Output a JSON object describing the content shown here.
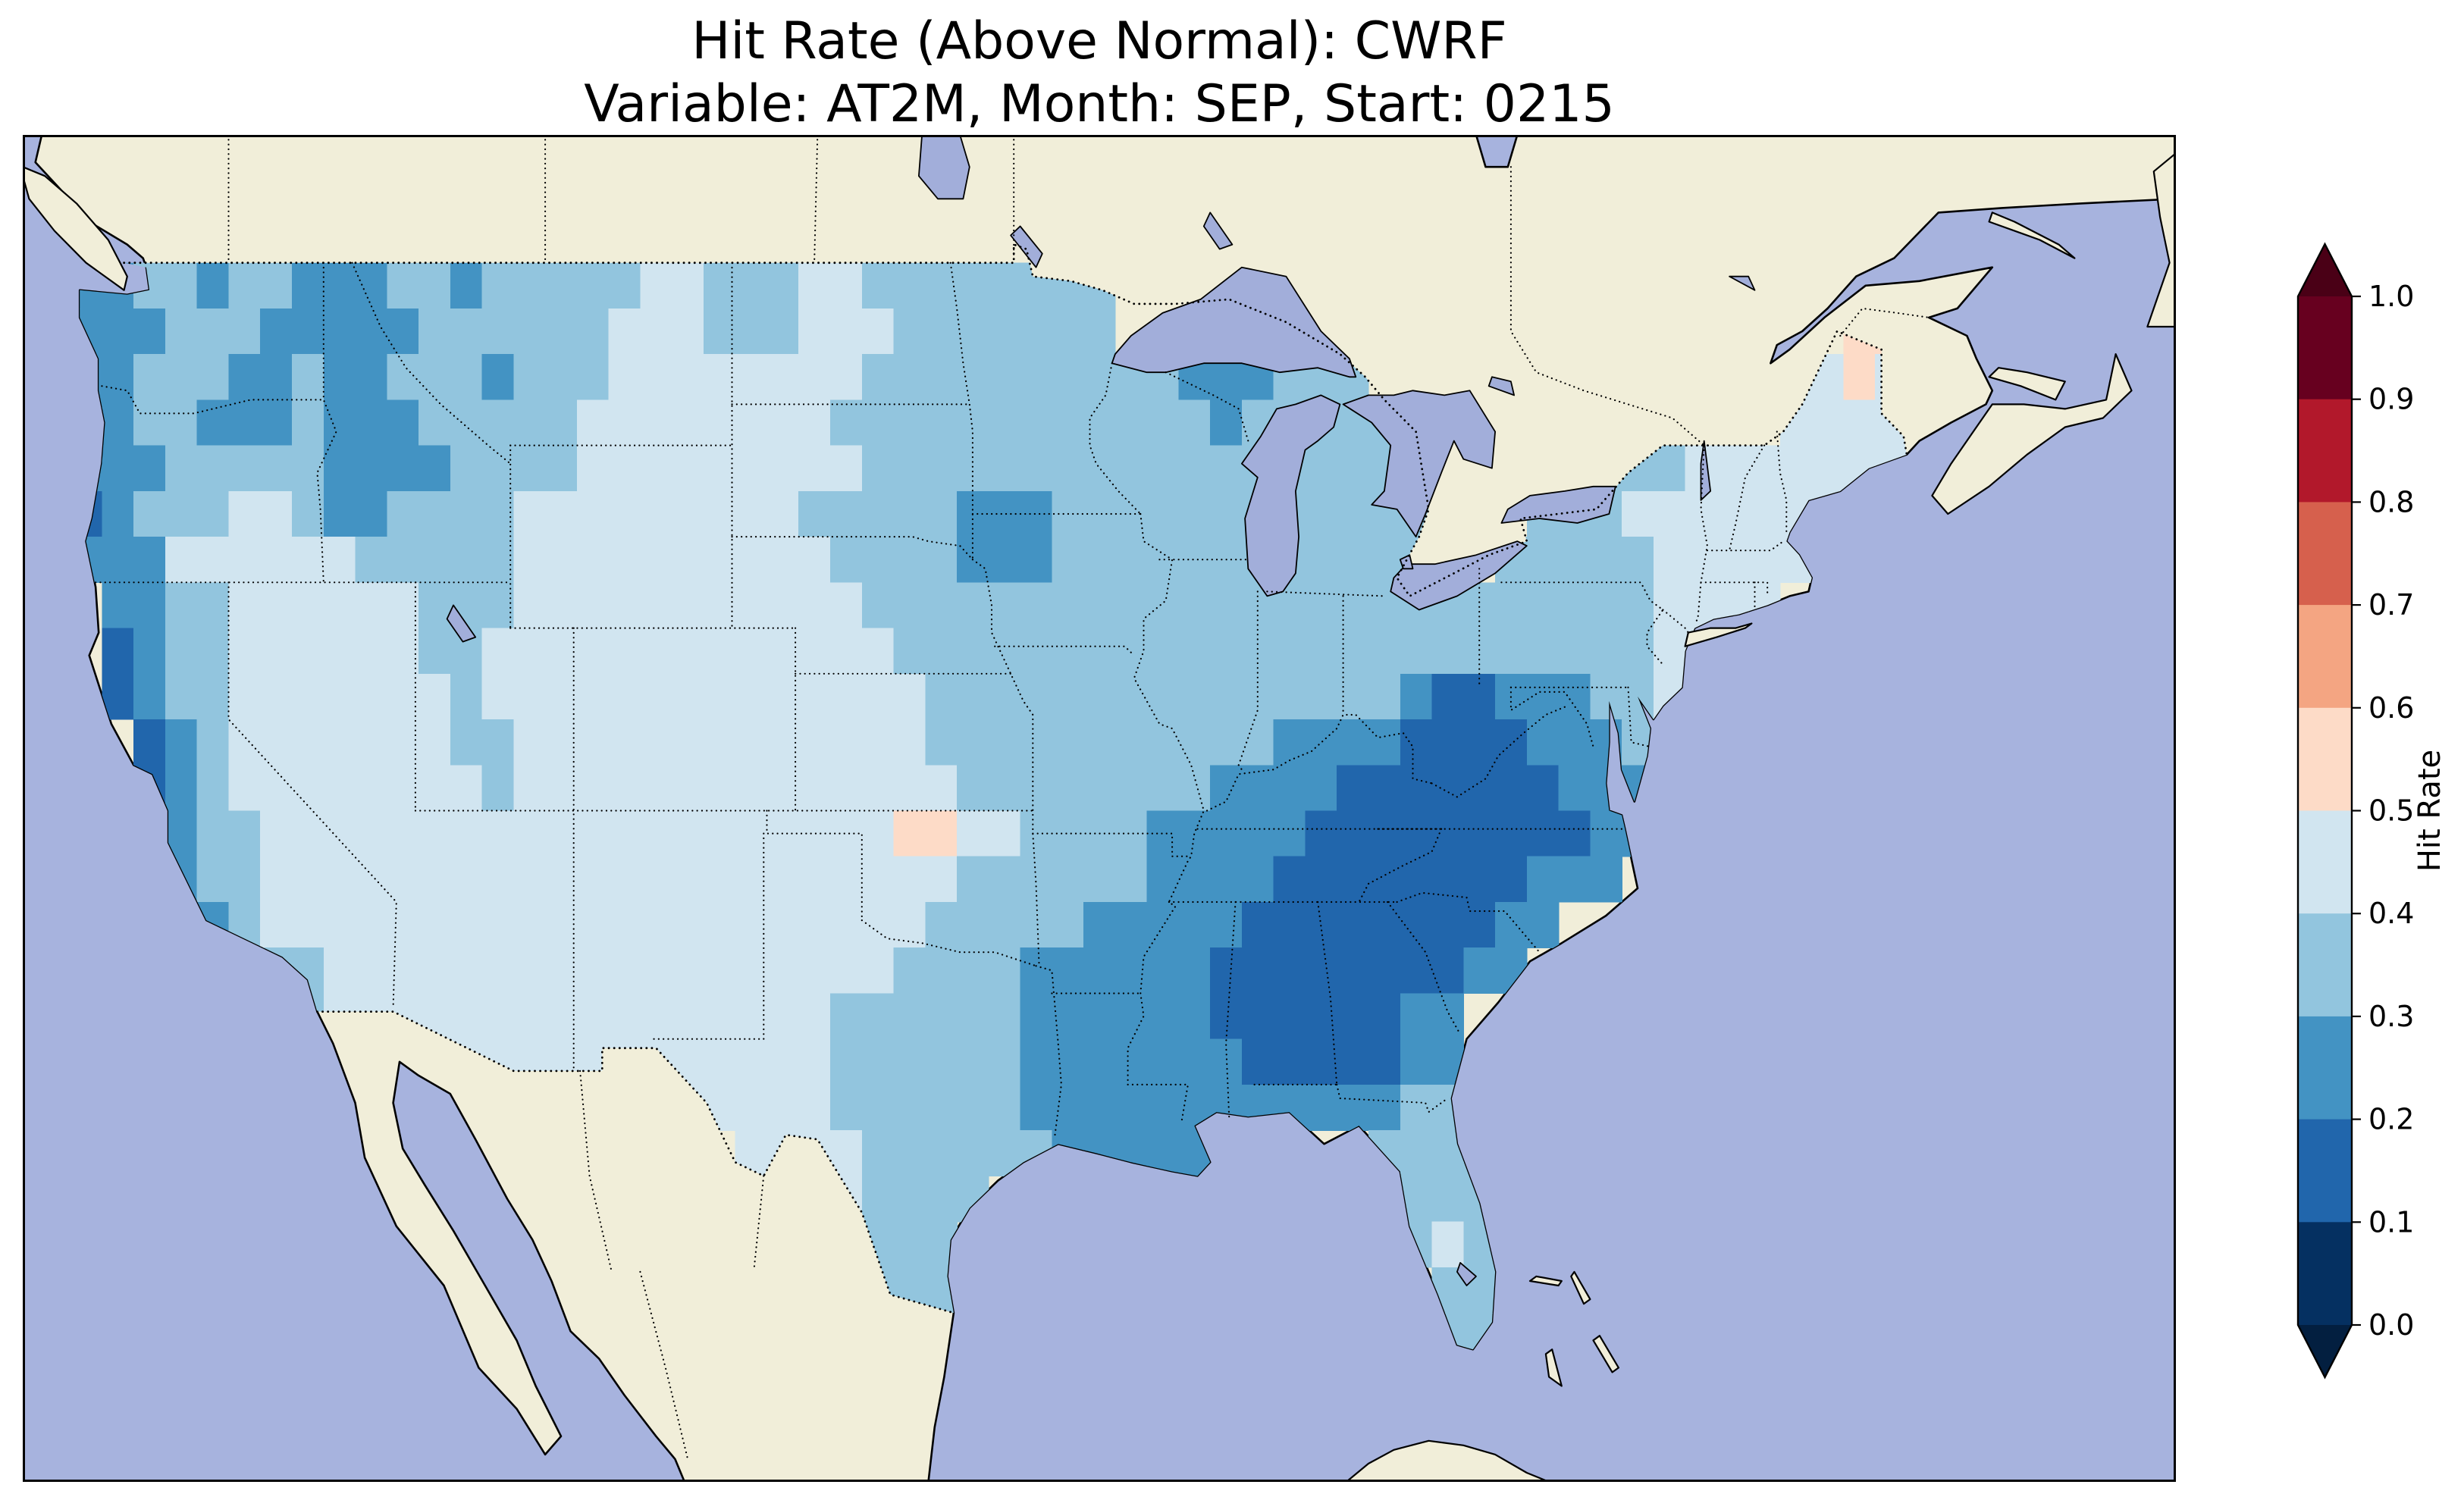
{
  "figure": {
    "title_line1": "Hit Rate (Above Normal): CWRF",
    "title_line2": "Variable: AT2M, Month: SEP, Start: 0215"
  },
  "map": {
    "ocean_color": "#a7b3de",
    "land_color": "#f1eed9",
    "lake_color": "#a2aeda",
    "coastline_color": "#000000"
  },
  "colorbar": {
    "label": "Hit Rate",
    "tick_labels": [
      "1.0",
      "0.9",
      "0.8",
      "0.7",
      "0.6",
      "0.5",
      "0.4",
      "0.3",
      "0.2",
      "0.1",
      "0.0"
    ],
    "segment_colors_low_to_high": [
      "#053061",
      "#2166ac",
      "#4393c3",
      "#92c5de",
      "#d1e5f0",
      "#fddbc7",
      "#f4a582",
      "#d6604d",
      "#b2182b",
      "#67001f"
    ],
    "under_arrow_color": "#031f40",
    "over_arrow_color": "#4a0016"
  },
  "chart_data": {
    "type": "heatmap",
    "title": "Hit Rate (Above Normal): CWRF",
    "subtitle": "Variable: AT2M, Month: SEP, Start: 0215",
    "model": "CWRF",
    "variable": "AT2M",
    "month": "SEP",
    "start": "0215",
    "legend_label": "Hit Rate",
    "value_range": [
      0.0,
      1.0
    ],
    "bin_width": 0.1,
    "colormap": "RdBu_r, 10 discrete bins with under/over arrows",
    "region": "Continental United States (gridded field over US land only)",
    "grid": {
      "lon_west_origin": -125,
      "lat_north_origin": 49,
      "dlon": 1,
      "dlat": 1,
      "encoding": "each row is north-to-south; chunks join west-to-east, one char per 1x1 degree cell; '.' = no data; digit d = hit-rate bin [d/10,(d+1)/10)",
      "rows_north_to_south": [
        [
          "2233233222",
          "3323333344",
          "3334433333",
          "333.......",
          "..........",
          "........"
        ],
        [
          "2223332222",
          "2333333444",
          "3334443333",
          "333...22..",
          "..........",
          "......55"
        ],
        [
          "2233322322",
          "3332333444",
          "4444433333",
          "3333322233",
          "3.........",
          "....4454"
        ],
        [
          "2233222322",
          "2333334444",
          "4444333333",
          "3333332333",
          "33........",
          "....4444"
        ],
        [
          "2223333322",
          "2233334444",
          "4444433333",
          "3333333333",
          "333.....33",
          "34444444"
        ],
        [
          "1233344322",
          "3333444444",
          "4443333322",
          "2333333333",
          "333...3334",
          "444444.."
        ],
        [
          "2224444443",
          "3333444444",
          "4444333322",
          "2333333333",
          "333..33333",
          "444444.."
        ],
        [
          ".223344444",
          "4333444444",
          "4444433333",
          "3333333333",
          "3333333333",
          "4444...."
        ],
        [
          ".123344444",
          "4334444444",
          "4444443333",
          "3333333333",
          "3333333333",
          "44......"
        ],
        [
          ".123344444",
          "4434444444",
          "4444444333",
          "3333333333",
          "3321122233",
          "4......."
        ],
        [
          "..12344444",
          "4433444444",
          "4444444333",
          "3333333322",
          "2211112223",
          "........"
        ],
        [
          "..12344444",
          "4443444444",
          "4444444433",
          "3333332222",
          "1111111222",
          "........"
        ],
        [
          "...2334444",
          "4444444444",
          "4444445544",
          "3333222221",
          "1111111122",
          "........"
        ],
        [
          "...2334444",
          "4444444444",
          "4444444433",
          "3333222211",
          "111111222.",
          "........"
        ],
        [
          "....234444",
          "4444444444",
          "4444444333",
          "3322222111",
          "1111122...",
          "........"
        ],
        [
          "......3344",
          "4444444444",
          "4444443333",
          "2222221111",
          "111122....",
          "........"
        ],
        [
          ".......344",
          "4444444444",
          "4444333333",
          "2222221111",
          "1122......",
          "........"
        ],
        [
          "..........",
          "4444444444",
          "4444333333",
          "2222222111",
          "1122......",
          "........"
        ],
        [
          "..........",
          "........44",
          "4444333333",
          "2222222222",
          "22333.....",
          "........"
        ],
        [
          "..........",
          "..........",
          ".444433333",
          "322222....",
          ".3333.....",
          "........"
        ],
        [
          "..........",
          "..........",
          "....43333.",
          "..........",
          "..333.....",
          "........"
        ],
        [
          "..........",
          "..........",
          ".....333..",
          "..........",
          "..343.....",
          "........"
        ],
        [
          "..........",
          "..........",
          ".....333..",
          "..........",
          "...33.....",
          "........"
        ],
        [
          "..........",
          "..........",
          "......3...",
          "..........",
          ".4.33.....",
          "........"
        ],
        [
          "..........",
          "..........",
          "..........",
          "..........",
          "..........",
          "........"
        ]
      ]
    }
  }
}
